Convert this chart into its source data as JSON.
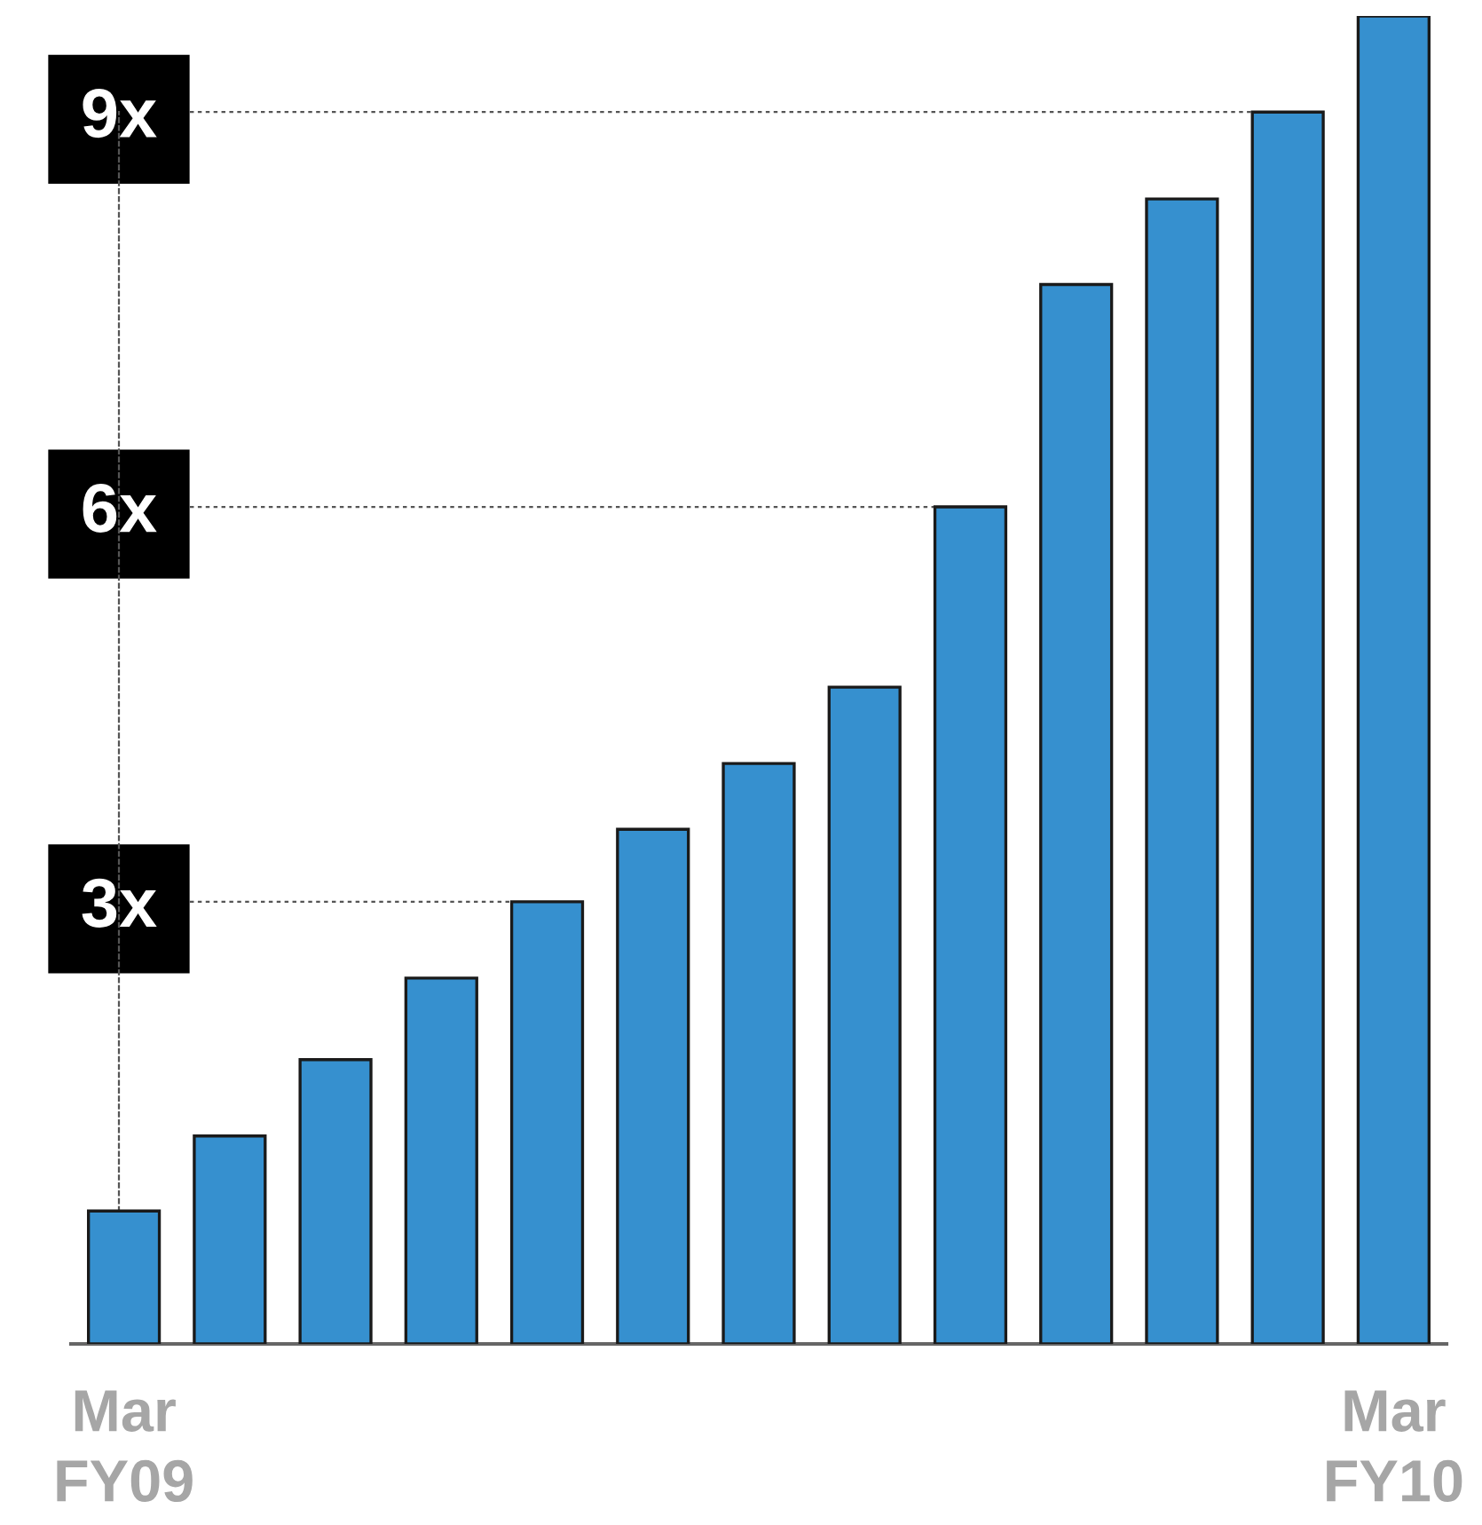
{
  "chart_data": {
    "type": "bar",
    "categories": [
      "Mar\nFY09",
      null,
      null,
      null,
      null,
      null,
      null,
      null,
      null,
      null,
      null,
      null,
      "Mar\nFY10"
    ],
    "base": [
      -0.36,
      -0.36,
      -0.36,
      -0.36,
      -0.36,
      -0.36,
      -0.36,
      -0.36,
      -0.36,
      -0.36,
      -0.36,
      -0.36,
      -0.36
    ],
    "values": [
      1.01,
      1.58,
      2.16,
      2.78,
      3.36,
      3.91,
      4.41,
      4.99,
      6.36,
      8.05,
      8.7,
      9.36,
      10.09
    ],
    "color": "#3690cf",
    "ylim": [
      -0.36,
      9.73
    ],
    "yticks": [
      {
        "value": 3,
        "label": "3x"
      },
      {
        "value": 6,
        "label": "6x"
      },
      {
        "value": 9,
        "label": "9x"
      }
    ],
    "ref_lines": [
      {
        "axis": "y",
        "value": 3,
        "line_style": "dotted",
        "color": "#555555"
      },
      {
        "axis": "y",
        "value": 6,
        "line_style": "dotted",
        "color": "#555555"
      },
      {
        "axis": "y",
        "value": 9,
        "line_style": "dotted",
        "color": "#555555"
      }
    ]
  }
}
